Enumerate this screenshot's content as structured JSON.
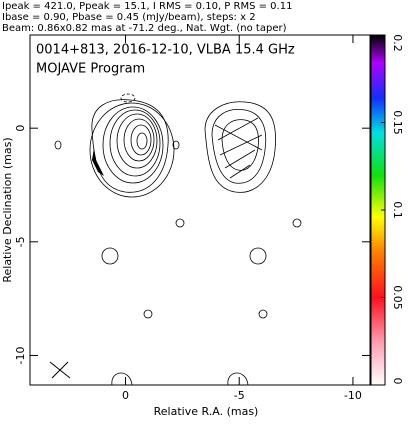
{
  "chart_data": {
    "type": "contour",
    "header": [
      "Ipeak = 421.0, Ppeak = 15.1, I RMS = 0.10, P RMS = 0.11",
      "Ibase = 0.90, Pbase = 0.45 (mJy/beam), steps: x 2",
      "Beam: 0.86x0.82 mas at -71.2 deg., Nat. Wgt. (no taper)"
    ],
    "title": "0014+813, 2016-12-10, VLBA 15.4 GHz",
    "subtitle": "MOJAVE Program",
    "xlabel": "Relative R.A. (mas)",
    "ylabel": "Relative Declination (mas)",
    "xlim": [
      4.2,
      -10.75
    ],
    "xticks": [
      0,
      -5,
      -10
    ],
    "ylim": [
      -11.3,
      4.1
    ],
    "yticks": [
      0,
      -5,
      -10
    ],
    "colorbar": {
      "lim": [
        0,
        0.2
      ],
      "ticks": [
        0,
        0.05,
        0.1,
        0.15,
        0.2
      ]
    }
  }
}
